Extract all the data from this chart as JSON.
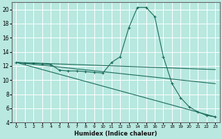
{
  "title": "",
  "xlabel": "Humidex (Indice chaleur)",
  "bg_color": "#b8e8e0",
  "grid_color": "#ffffff",
  "line_color": "#1a6b5a",
  "xlim": [
    -0.5,
    23.5
  ],
  "ylim": [
    4,
    21
  ],
  "yticks": [
    4,
    6,
    8,
    10,
    12,
    14,
    16,
    18,
    20
  ],
  "xticks": [
    0,
    1,
    2,
    3,
    4,
    5,
    6,
    7,
    8,
    9,
    10,
    11,
    12,
    13,
    14,
    15,
    16,
    17,
    18,
    19,
    20,
    21,
    22,
    23
  ],
  "series": [
    {
      "x": [
        0,
        1,
        2,
        3,
        4,
        5,
        6,
        7,
        8,
        9,
        10,
        11,
        12,
        13,
        14,
        15,
        16,
        17,
        18,
        19,
        20,
        21,
        22,
        23
      ],
      "y": [
        12.5,
        12.4,
        12.4,
        12.3,
        12.2,
        11.4,
        11.3,
        11.3,
        11.2,
        11.1,
        11.0,
        12.5,
        13.3,
        17.4,
        20.3,
        20.3,
        19.0,
        13.3,
        9.5,
        7.5,
        6.2,
        5.5,
        5.0,
        4.8
      ]
    },
    {
      "x": [
        0,
        23
      ],
      "y": [
        12.5,
        4.8
      ]
    },
    {
      "x": [
        0,
        23
      ],
      "y": [
        12.5,
        9.5
      ]
    },
    {
      "x": [
        0,
        23
      ],
      "y": [
        12.5,
        11.5
      ]
    }
  ]
}
